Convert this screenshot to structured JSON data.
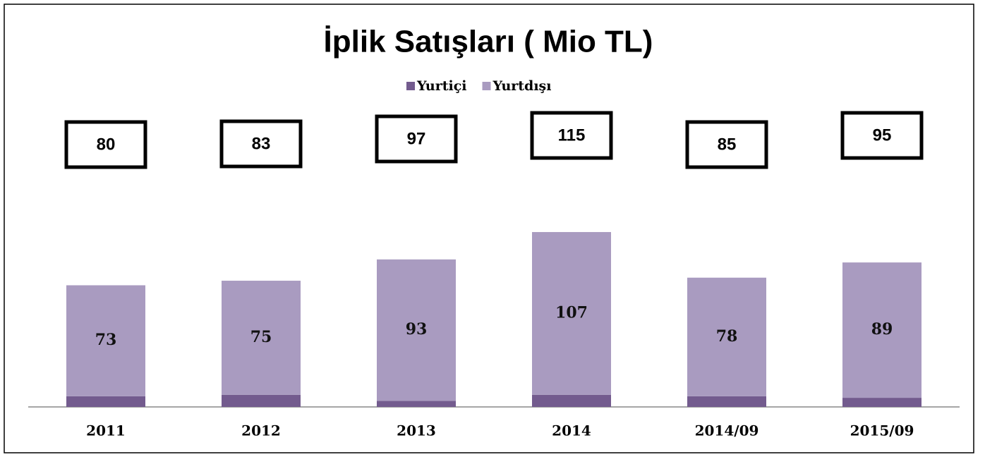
{
  "chart_data": {
    "type": "stacked_bar",
    "title": "İplik Satışları  ( Mio TL)",
    "categories": [
      "2011",
      "2012",
      "2013",
      "2014",
      "2014/09",
      "2015/09"
    ],
    "series": [
      {
        "name": "Yurtiçi",
        "color": "#735b8e",
        "values": [
          7,
          8,
          4,
          8,
          7,
          6
        ]
      },
      {
        "name": "Yurtdışı",
        "color": "#a99bc0",
        "values": [
          73,
          75,
          93,
          107,
          78,
          89
        ]
      }
    ],
    "totals": [
      80,
      83,
      97,
      115,
      85,
      95
    ],
    "ylim": [
      0,
      160
    ],
    "legend": "top"
  }
}
